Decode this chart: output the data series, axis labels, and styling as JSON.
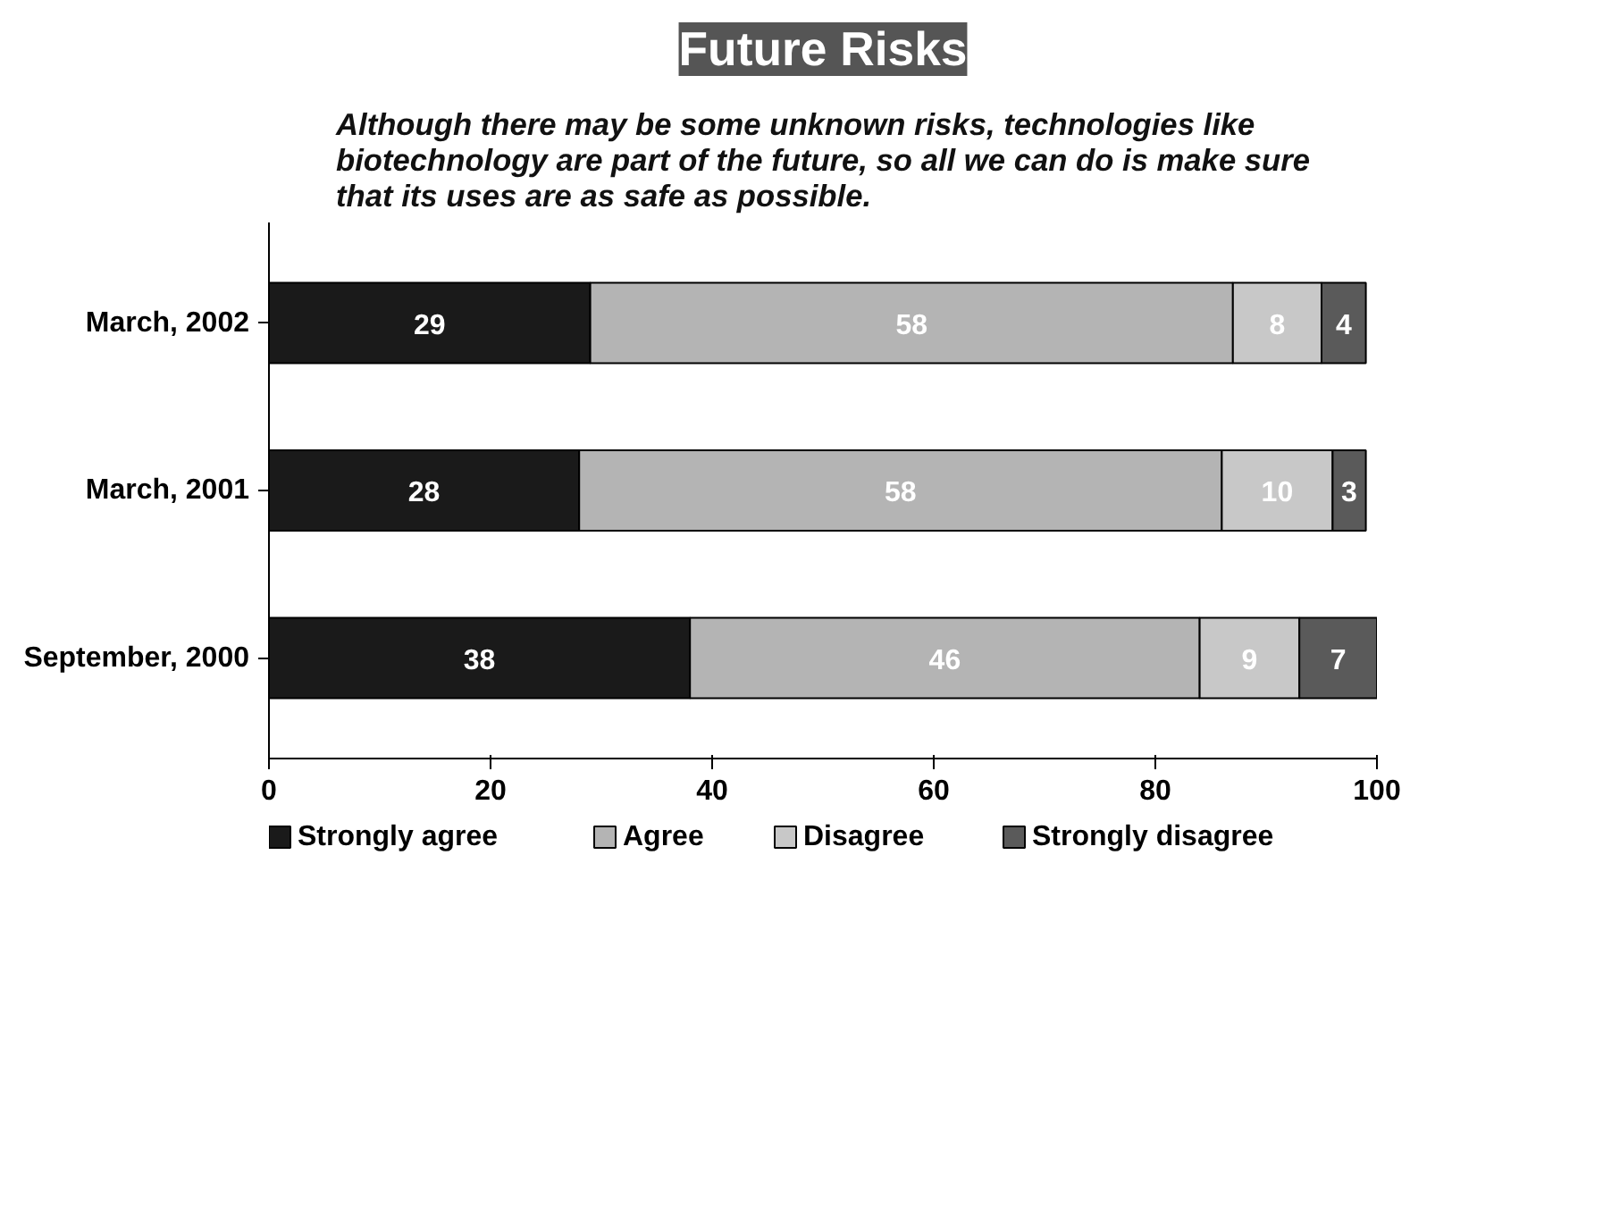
{
  "chart_data": {
    "type": "bar",
    "orientation": "horizontal",
    "stacked": true,
    "title": "Future Risks",
    "subtitle": "Although there may be some unknown risks, technologies like\nbiotechnology are part of the future, so all we can do is make sure\nthat its uses are as safe as possible.",
    "categories": [
      "March, 2002",
      "March, 2001",
      "September, 2000"
    ],
    "series": [
      {
        "name": "Strongly agree",
        "color": "#1a1a1a",
        "values": [
          29,
          28,
          38
        ]
      },
      {
        "name": "Agree",
        "color": "#b4b4b4",
        "values": [
          58,
          58,
          46
        ]
      },
      {
        "name": "Disagree",
        "color": "#c8c8c8",
        "values": [
          8,
          10,
          9
        ]
      },
      {
        "name": "Strongly disagree",
        "color": "#5a5a5a",
        "values": [
          4,
          3,
          7
        ]
      }
    ],
    "xlim": [
      0,
      100
    ],
    "xticks": [
      0,
      20,
      40,
      60,
      80,
      100
    ],
    "grid": false,
    "legend": "bottom",
    "data_labels": true
  }
}
